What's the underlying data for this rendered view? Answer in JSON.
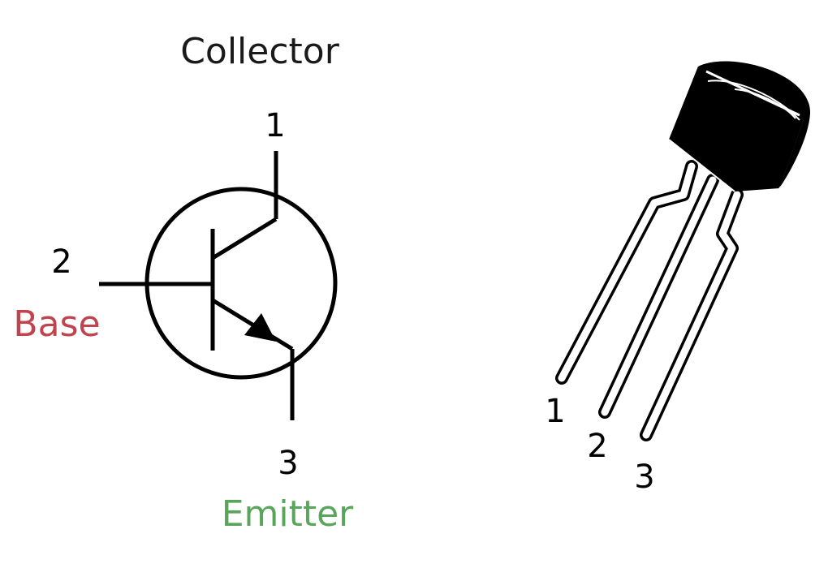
{
  "symbol": {
    "collector": {
      "pin": "1",
      "name": "Collector"
    },
    "base": {
      "pin": "2",
      "name": "Base"
    },
    "emitter": {
      "pin": "3",
      "name": "Emitter"
    }
  },
  "package": {
    "pins": [
      "1",
      "2",
      "3"
    ]
  },
  "colors": {
    "text": "#1a1a1a",
    "base": "#c0444e",
    "emitter": "#5aa55c",
    "line": "#000000"
  }
}
